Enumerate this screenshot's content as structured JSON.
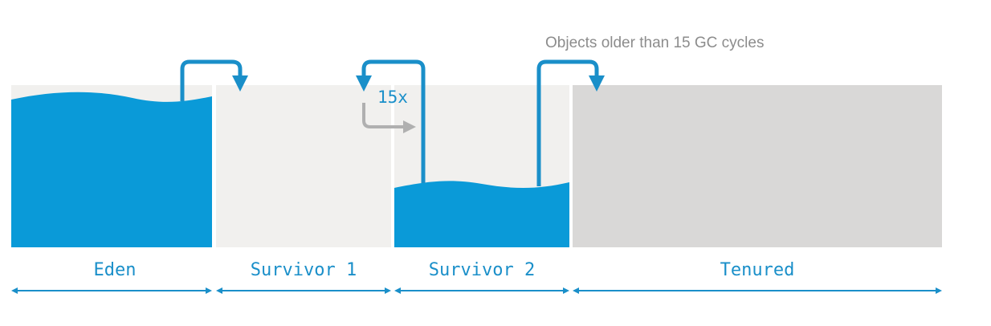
{
  "colors": {
    "fill_blue": "#0a9ad8",
    "arrow_blue": "#1a8fc9",
    "survivor_bg": "#f1f0ee",
    "tenured_bg": "#d9d8d7",
    "grey_arrow": "#b0b0b0",
    "note_text": "#8c8c8c"
  },
  "regions": [
    {
      "key": "eden",
      "label": "Eden"
    },
    {
      "key": "survivor1",
      "label": "Survivor 1"
    },
    {
      "key": "survivor2",
      "label": "Survivor 2"
    },
    {
      "key": "tenured",
      "label": "Tenured"
    }
  ],
  "annotations": {
    "promotion_note": "Objects older than 15 GC cycles",
    "cycle_count": "15x"
  }
}
